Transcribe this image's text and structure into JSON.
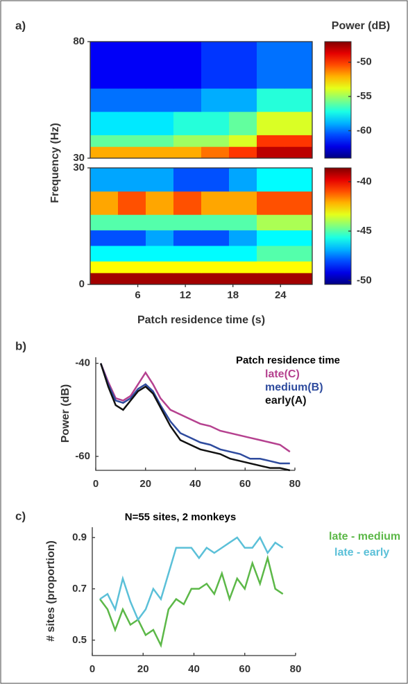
{
  "chart_data": [
    {
      "type": "heatmap",
      "panel": "a)",
      "colorbar_label": "Power (dB)",
      "colormap": "jet",
      "x_edges": [
        0,
        3.5,
        7,
        10.5,
        14,
        17.5,
        21,
        24.5,
        28
      ],
      "y_edges": [
        30,
        35,
        40,
        50,
        60,
        80
      ],
      "z": [
        [
          -52,
          -52,
          -52,
          -52,
          -51,
          -50,
          -48,
          -48
        ],
        [
          -56,
          -56,
          -56,
          -55,
          -55,
          -54,
          -50,
          -50
        ],
        [
          -58,
          -58,
          -58,
          -57,
          -57,
          -56,
          -54,
          -54
        ],
        [
          -60,
          -60,
          -60,
          -60,
          -59,
          -59,
          -57,
          -57
        ],
        [
          -62,
          -62,
          -62,
          -62,
          -61,
          -61,
          -60,
          -60
        ]
      ],
      "xlim": [
        0,
        28
      ],
      "ylim": [
        30,
        80
      ],
      "yticks": [
        30,
        80
      ],
      "clim": [
        -64,
        -47
      ],
      "cticks": [
        -50,
        -55,
        -60
      ]
    },
    {
      "type": "heatmap",
      "colormap": "jet",
      "xlabel": "Patch residence time (s)",
      "ylabel": "Frequency (Hz)",
      "x_edges": [
        0,
        3.5,
        7,
        10.5,
        14,
        17.5,
        21,
        24.5,
        28
      ],
      "y_edges": [
        0,
        3,
        6,
        10,
        14,
        18,
        24,
        30
      ],
      "z": [
        [
          -39,
          -39,
          -39,
          -39,
          -39,
          -39,
          -39,
          -39
        ],
        [
          -43,
          -43,
          -43,
          -43,
          -43,
          -43,
          -43,
          -43
        ],
        [
          -46,
          -46,
          -46,
          -46,
          -46,
          -46,
          -45,
          -45
        ],
        [
          -48,
          -48,
          -47,
          -48,
          -48,
          -47,
          -46,
          -46
        ],
        [
          -45,
          -45,
          -45,
          -45,
          -45,
          -45,
          -44,
          -44
        ],
        [
          -42,
          -41,
          -42,
          -41,
          -42,
          -42,
          -41,
          -41
        ],
        [
          -47,
          -47,
          -47,
          -48,
          -48,
          -47,
          -46,
          -46
        ]
      ],
      "xlim": [
        0,
        28
      ],
      "xticks": [
        6,
        12,
        18,
        24
      ],
      "ylim": [
        0,
        30
      ],
      "yticks": [
        0,
        30
      ],
      "clim": [
        -50.4,
        -38.6
      ],
      "cticks": [
        -40,
        -45,
        -50
      ]
    },
    {
      "type": "line",
      "panel": "b)",
      "ylabel": "Power (dB)",
      "legend_title": "Patch residence time",
      "x": [
        2,
        5,
        8,
        11,
        14,
        17,
        20,
        23,
        26,
        30,
        34,
        38,
        42,
        46,
        50,
        54,
        58,
        62,
        66,
        70,
        74,
        78
      ],
      "series": [
        {
          "name": "late(C)",
          "color": "#b5418f",
          "values": [
            -40,
            -44,
            -47.5,
            -48,
            -47,
            -44.5,
            -42,
            -44.5,
            -47.5,
            -50,
            -51,
            -52,
            -53,
            -53.5,
            -54.5,
            -55,
            -55.5,
            -56,
            -56.5,
            -57,
            -57.5,
            -59
          ]
        },
        {
          "name": "medium(B)",
          "color": "#2e4b9e",
          "values": [
            -40,
            -44.5,
            -48,
            -48.5,
            -47.5,
            -45.5,
            -44.5,
            -46,
            -49,
            -52.5,
            -55,
            -56,
            -57,
            -57.5,
            -58.5,
            -59,
            -59.5,
            -60.5,
            -60.5,
            -61,
            -61.5,
            -61.5
          ]
        },
        {
          "name": "early(A)",
          "color": "#111111",
          "values": [
            -40,
            -45,
            -49,
            -50,
            -48,
            -46,
            -45,
            -46.5,
            -49.5,
            -53.5,
            -56.5,
            -57.5,
            -58.5,
            -59,
            -59.5,
            -60.5,
            -61,
            -61.5,
            -62,
            -62.5,
            -62.5,
            -63
          ]
        }
      ],
      "xlim": [
        0,
        80
      ],
      "xticks": [
        0,
        20,
        40,
        60,
        80
      ],
      "ylim": [
        -63,
        -38.7
      ],
      "yticks": [
        -40,
        -60
      ]
    },
    {
      "type": "line",
      "panel": "c)",
      "title": "N=55 sites, 2 monkeys",
      "ylabel": "# sites (proportion)",
      "x": [
        3,
        6,
        9,
        12,
        15,
        18,
        21,
        24,
        27,
        30,
        33,
        36,
        39,
        42,
        45,
        48,
        51,
        54,
        57,
        60,
        63,
        66,
        69,
        72,
        75
      ],
      "series": [
        {
          "name": "late - medium",
          "color": "#5cb848",
          "values": [
            0.66,
            0.62,
            0.54,
            0.62,
            0.56,
            0.58,
            0.52,
            0.54,
            0.48,
            0.62,
            0.66,
            0.64,
            0.7,
            0.7,
            0.72,
            0.68,
            0.76,
            0.66,
            0.74,
            0.7,
            0.8,
            0.72,
            0.82,
            0.7,
            0.68
          ]
        },
        {
          "name": "late - early",
          "color": "#5bc0d8",
          "values": [
            0.66,
            0.68,
            0.62,
            0.74,
            0.65,
            0.58,
            0.62,
            0.7,
            0.66,
            0.76,
            0.86,
            0.86,
            0.86,
            0.82,
            0.86,
            0.84,
            0.86,
            0.88,
            0.9,
            0.86,
            0.86,
            0.9,
            0.84,
            0.88,
            0.86
          ]
        }
      ],
      "xlim": [
        0,
        80
      ],
      "xticks": [
        0,
        20,
        40,
        60,
        80
      ],
      "ylim": [
        0.44,
        0.94
      ],
      "yticks": [
        0.5,
        0.7,
        0.9
      ]
    }
  ]
}
